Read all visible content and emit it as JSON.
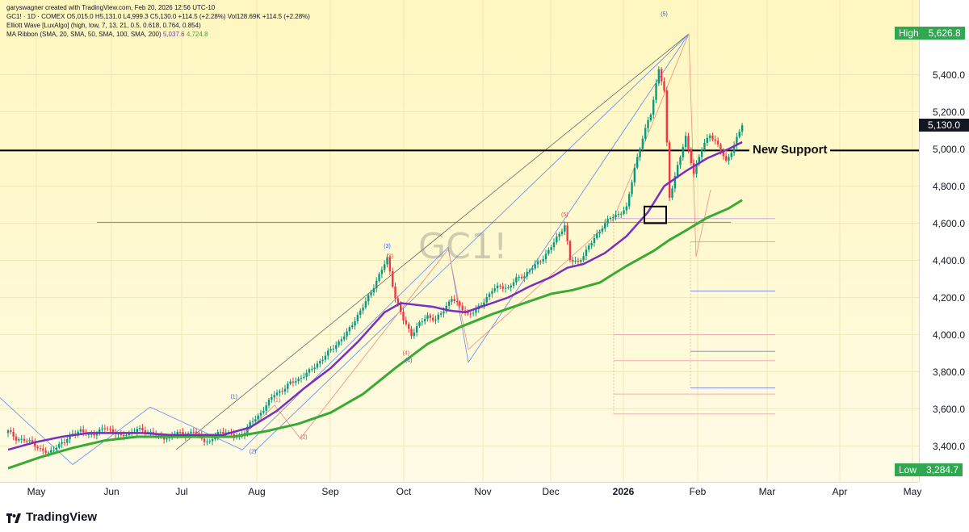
{
  "header": {
    "line1": "garyswagner created with TradingView.com, Feb 20, 2026 12:56 UTC-10",
    "line2": "GC1! · 1D · COMEX  O5,015.0  H5,131.0  L4,999.3  C5,130.0  +114.5 (+2.28%)  Vol128.69K  +114.5 (+2.28%)",
    "line3": "Elliott Wave [LuxAlgo] (high, low, 7, 13, 21, 0.5, 0.618, 0.764, 0.854)",
    "line4_prefix": "MA Ribbon (SMA, 20, SMA, 50, SMA, 100, SMA, 200)",
    "line4_ma20": "5,037.6",
    "line4_ma50": "4,724.8"
  },
  "watermark": "GC1!",
  "annotations": {
    "support_label": "New Support",
    "support_price": 4992
  },
  "price_tags": {
    "high_label": "High",
    "high_value": "5,626.8",
    "low_label": "Low",
    "low_value": "3,284.7",
    "last_value": "5,130.0"
  },
  "brand": {
    "name": "TradingView"
  },
  "colors": {
    "up": "#089981",
    "down": "#f23645",
    "ma_fast": "#7b2fbf",
    "ma_slow": "#3aaa35",
    "wave_blue": "#5b8cf5",
    "wave_red": "#f28b82",
    "tag_green": "#2fa84f"
  },
  "chart_data": {
    "type": "candlestick",
    "y_ticks": [
      "5,400.0",
      "5,200.0",
      "5,000.0",
      "4,800.0",
      "4,600.0",
      "4,400.0",
      "4,200.0",
      "4,000.0",
      "3,800.0",
      "3,600.0",
      "3,400.0"
    ],
    "x_ticks": [
      {
        "label": "May",
        "bold": false
      },
      {
        "label": "Jun",
        "bold": false
      },
      {
        "label": "Jul",
        "bold": false
      },
      {
        "label": "Aug",
        "bold": false
      },
      {
        "label": "Sep",
        "bold": false
      },
      {
        "label": "Oct",
        "bold": false
      },
      {
        "label": "Nov",
        "bold": false
      },
      {
        "label": "Dec",
        "bold": false
      },
      {
        "label": "2026",
        "bold": true
      },
      {
        "label": "Feb",
        "bold": false
      },
      {
        "label": "Mar",
        "bold": false
      },
      {
        "label": "Apr",
        "bold": false
      },
      {
        "label": "May",
        "bold": false
      }
    ],
    "ylim": [
      3250,
      5650
    ],
    "close_path": [
      [
        0,
        3480
      ],
      [
        3,
        3440
      ],
      [
        6,
        3430
      ],
      [
        9,
        3420
      ],
      [
        12,
        3380
      ],
      [
        15,
        3360
      ],
      [
        18,
        3400
      ],
      [
        21,
        3420
      ],
      [
        24,
        3470
      ],
      [
        27,
        3480
      ],
      [
        30,
        3460
      ],
      [
        33,
        3470
      ],
      [
        36,
        3500
      ],
      [
        39,
        3480
      ],
      [
        42,
        3450
      ],
      [
        45,
        3470
      ],
      [
        48,
        3490
      ],
      [
        51,
        3480
      ],
      [
        54,
        3470
      ],
      [
        57,
        3440
      ],
      [
        60,
        3450
      ],
      [
        63,
        3470
      ],
      [
        66,
        3460
      ],
      [
        69,
        3480
      ],
      [
        72,
        3440
      ],
      [
        75,
        3420
      ],
      [
        78,
        3470
      ],
      [
        81,
        3480
      ],
      [
        84,
        3450
      ],
      [
        87,
        3460
      ],
      [
        90,
        3520
      ],
      [
        93,
        3560
      ],
      [
        96,
        3620
      ],
      [
        99,
        3680
      ],
      [
        102,
        3700
      ],
      [
        105,
        3740
      ],
      [
        108,
        3760
      ],
      [
        111,
        3790
      ],
      [
        114,
        3830
      ],
      [
        117,
        3870
      ],
      [
        120,
        3920
      ],
      [
        123,
        3960
      ],
      [
        126,
        4010
      ],
      [
        129,
        4080
      ],
      [
        132,
        4150
      ],
      [
        135,
        4230
      ],
      [
        138,
        4320
      ],
      [
        141,
        4410
      ],
      [
        144,
        4200
      ],
      [
        147,
        4080
      ],
      [
        150,
        4000
      ],
      [
        153,
        4060
      ],
      [
        156,
        4100
      ],
      [
        159,
        4080
      ],
      [
        162,
        4130
      ],
      [
        165,
        4200
      ],
      [
        168,
        4150
      ],
      [
        171,
        4110
      ],
      [
        174,
        4130
      ],
      [
        177,
        4180
      ],
      [
        180,
        4240
      ],
      [
        183,
        4260
      ],
      [
        186,
        4250
      ],
      [
        189,
        4300
      ],
      [
        192,
        4320
      ],
      [
        195,
        4360
      ],
      [
        198,
        4400
      ],
      [
        201,
        4450
      ],
      [
        204,
        4520
      ],
      [
        207,
        4590
      ],
      [
        209,
        4400
      ],
      [
        212,
        4390
      ],
      [
        215,
        4450
      ],
      [
        218,
        4520
      ],
      [
        221,
        4580
      ],
      [
        224,
        4630
      ],
      [
        227,
        4650
      ],
      [
        230,
        4680
      ],
      [
        233,
        4900
      ],
      [
        236,
        5060
      ],
      [
        239,
        5190
      ],
      [
        242,
        5430
      ],
      [
        244,
        5310
      ],
      [
        246,
        4740
      ],
      [
        249,
        4910
      ],
      [
        252,
        5060
      ],
      [
        255,
        4870
      ],
      [
        258,
        5000
      ],
      [
        261,
        5080
      ],
      [
        264,
        5020
      ],
      [
        267,
        4930
      ],
      [
        270,
        5020
      ],
      [
        273,
        5130
      ]
    ],
    "ma_fast_path": [
      [
        0,
        3380
      ],
      [
        10,
        3420
      ],
      [
        20,
        3450
      ],
      [
        30,
        3470
      ],
      [
        40,
        3470
      ],
      [
        50,
        3470
      ],
      [
        60,
        3460
      ],
      [
        70,
        3460
      ],
      [
        80,
        3460
      ],
      [
        90,
        3500
      ],
      [
        100,
        3590
      ],
      [
        110,
        3710
      ],
      [
        120,
        3820
      ],
      [
        130,
        3960
      ],
      [
        140,
        4120
      ],
      [
        146,
        4170
      ],
      [
        152,
        4160
      ],
      [
        158,
        4150
      ],
      [
        164,
        4130
      ],
      [
        170,
        4120
      ],
      [
        178,
        4160
      ],
      [
        186,
        4200
      ],
      [
        194,
        4260
      ],
      [
        202,
        4310
      ],
      [
        208,
        4360
      ],
      [
        214,
        4380
      ],
      [
        222,
        4440
      ],
      [
        230,
        4530
      ],
      [
        238,
        4660
      ],
      [
        244,
        4800
      ],
      [
        252,
        4880
      ],
      [
        260,
        4950
      ],
      [
        268,
        5000
      ],
      [
        273,
        5037
      ]
    ],
    "ma_slow_path": [
      [
        0,
        3280
      ],
      [
        12,
        3340
      ],
      [
        24,
        3390
      ],
      [
        36,
        3430
      ],
      [
        48,
        3450
      ],
      [
        60,
        3450
      ],
      [
        72,
        3450
      ],
      [
        84,
        3450
      ],
      [
        96,
        3480
      ],
      [
        108,
        3520
      ],
      [
        120,
        3580
      ],
      [
        132,
        3680
      ],
      [
        144,
        3820
      ],
      [
        156,
        3950
      ],
      [
        168,
        4040
      ],
      [
        180,
        4110
      ],
      [
        192,
        4170
      ],
      [
        202,
        4220
      ],
      [
        210,
        4240
      ],
      [
        220,
        4280
      ],
      [
        230,
        4370
      ],
      [
        240,
        4450
      ],
      [
        246,
        4510
      ],
      [
        252,
        4560
      ],
      [
        260,
        4630
      ],
      [
        268,
        4680
      ],
      [
        273,
        4725
      ]
    ],
    "wave_labels": [
      {
        "label": "(1)",
        "i": 84,
        "v": 3657,
        "color": "blue"
      },
      {
        "label": "(2)",
        "i": 91,
        "v": 3360,
        "color": "blue"
      },
      {
        "label": "(1)",
        "i": 100,
        "v": 3640,
        "color": "red"
      },
      {
        "label": "(2)",
        "i": 110,
        "v": 3440,
        "color": "red"
      },
      {
        "label": "(3)",
        "i": 141,
        "v": 4468,
        "color": "blue"
      },
      {
        "label": "(3)",
        "i": 142,
        "v": 4412,
        "color": "red"
      },
      {
        "label": "(4)",
        "i": 148,
        "v": 3892,
        "color": "red"
      },
      {
        "label": "(4)",
        "i": 149,
        "v": 3852,
        "color": "blue"
      },
      {
        "label": "(5)",
        "i": 207,
        "v": 4637,
        "color": "red"
      },
      {
        "label": "(5)",
        "i": 244,
        "v": 5718,
        "color": "blue"
      }
    ]
  }
}
